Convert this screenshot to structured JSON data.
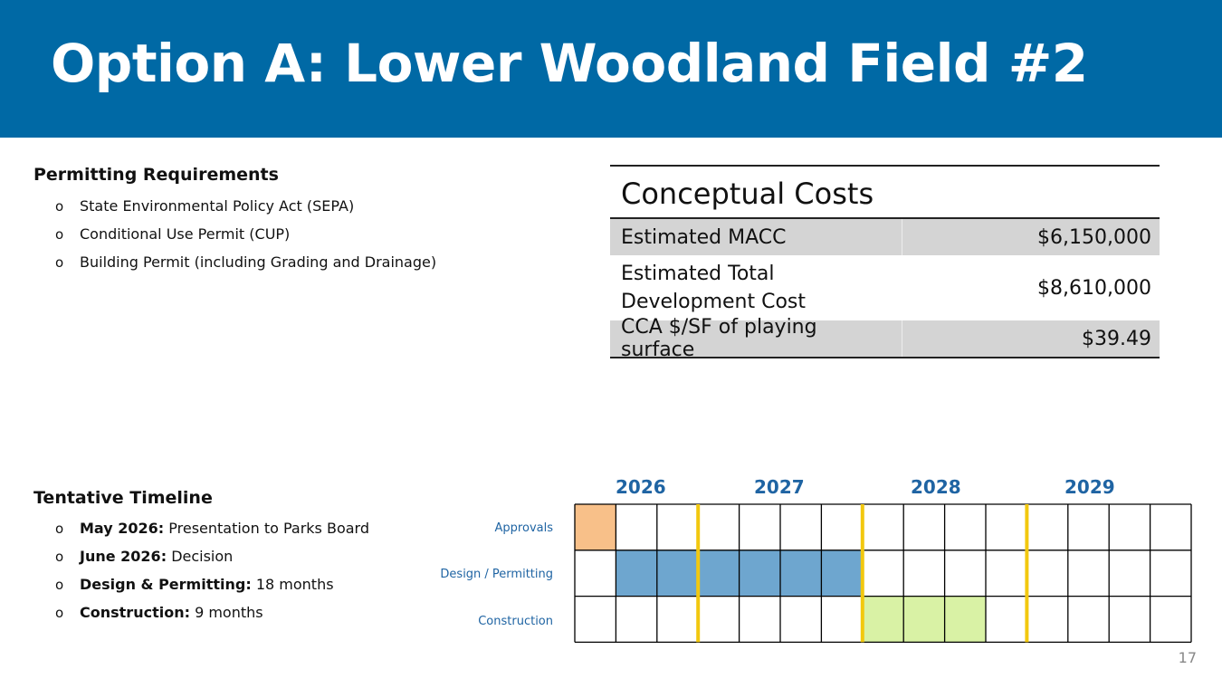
{
  "slide": {
    "title": "Option A: Lower Woodland Field #2",
    "page_number": "17",
    "banner_color": "#0069a5"
  },
  "permitting": {
    "heading": "Permitting Requirements",
    "items": [
      "State Environmental Policy Act (SEPA)",
      "Conditional Use Permit (CUP)",
      "Building Permit (including Grading and Drainage)"
    ]
  },
  "timeline": {
    "heading": "Tentative Timeline",
    "items": [
      {
        "label": "May 2026:",
        "text": "Presentation to Parks Board"
      },
      {
        "label": "June 2026:",
        "text": "Decision"
      },
      {
        "label": "Design & Permitting:",
        "text": "18 months"
      },
      {
        "label": "Construction:",
        "text": "9 months"
      }
    ]
  },
  "costs": {
    "title": "Conceptual Costs",
    "rows": [
      {
        "label": "Estimated MACC",
        "value": "$6,150,000"
      },
      {
        "label": "Estimated Total Development Cost",
        "label_lines": [
          "Estimated Total",
          "Development Cost"
        ],
        "value": "$8,610,000"
      },
      {
        "label": "CCA $/SF of playing surface",
        "value": "$39.49"
      }
    ]
  },
  "gantt": {
    "years": [
      "2026",
      "2027",
      "2028",
      "2029"
    ],
    "columns_total": 15,
    "year_divider_after_columns": [
      3,
      7,
      11
    ],
    "rows": [
      {
        "label": "Approvals",
        "start_col": 1,
        "span": 1,
        "color": "#f8c089"
      },
      {
        "label": "Design / Permitting",
        "start_col": 2,
        "span": 6,
        "color": "#6ea6cf"
      },
      {
        "label": "Construction",
        "start_col": 8,
        "span": 3,
        "color": "#d9f2a5"
      }
    ],
    "grid_color": "#000000",
    "divider_color": "#f2c80f"
  }
}
